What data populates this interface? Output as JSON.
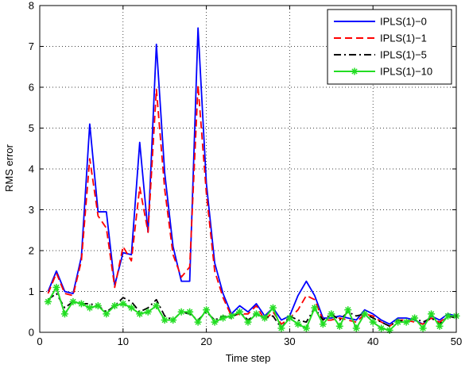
{
  "chart_data": {
    "type": "line",
    "title": "",
    "xlabel": "Time step",
    "ylabel": "RMS error",
    "xlim": [
      0,
      50
    ],
    "ylim": [
      0,
      8
    ],
    "xticks": [
      "0",
      "10",
      "20",
      "30",
      "40",
      "50"
    ],
    "yticks": [
      "0",
      "1",
      "2",
      "3",
      "4",
      "5",
      "6",
      "7",
      "8"
    ],
    "grid": true,
    "legend_position": "top-right",
    "x": [
      1,
      2,
      3,
      4,
      5,
      6,
      7,
      8,
      9,
      10,
      11,
      12,
      13,
      14,
      15,
      16,
      17,
      18,
      19,
      20,
      21,
      22,
      23,
      24,
      25,
      26,
      27,
      28,
      29,
      30,
      31,
      32,
      33,
      34,
      35,
      36,
      37,
      38,
      39,
      40,
      41,
      42,
      43,
      44,
      45,
      46,
      47,
      48,
      49,
      50
    ],
    "series": [
      {
        "name": "IPLS(1)−0",
        "color": "#0000ff",
        "style": "solid",
        "values": [
          1.0,
          1.5,
          1.0,
          0.95,
          1.85,
          5.1,
          2.95,
          2.95,
          1.15,
          1.95,
          1.9,
          4.65,
          2.45,
          7.05,
          3.9,
          2.1,
          1.25,
          1.25,
          7.45,
          3.65,
          1.7,
          0.95,
          0.45,
          0.65,
          0.5,
          0.7,
          0.4,
          0.6,
          0.3,
          0.4,
          0.9,
          1.25,
          0.9,
          0.35,
          0.35,
          0.4,
          0.35,
          0.3,
          0.55,
          0.45,
          0.3,
          0.2,
          0.35,
          0.35,
          0.3,
          0.2,
          0.4,
          0.3,
          0.45,
          0.4
        ]
      },
      {
        "name": "IPLS(1)−1",
        "color": "#ff0000",
        "style": "dashed",
        "values": [
          0.95,
          1.45,
          0.95,
          0.9,
          1.75,
          4.25,
          2.85,
          2.55,
          1.1,
          2.1,
          1.75,
          3.55,
          2.45,
          5.95,
          3.5,
          1.9,
          1.35,
          1.6,
          6.05,
          3.4,
          1.5,
          0.85,
          0.4,
          0.45,
          0.45,
          0.65,
          0.3,
          0.5,
          0.2,
          0.35,
          0.55,
          0.9,
          0.8,
          0.3,
          0.3,
          0.35,
          0.3,
          0.25,
          0.45,
          0.4,
          0.25,
          0.15,
          0.3,
          0.3,
          0.25,
          0.2,
          0.35,
          0.25,
          0.4,
          0.35
        ]
      },
      {
        "name": "IPLS(1)−5",
        "color": "#000000",
        "style": "dashdot",
        "values": [
          0.8,
          0.95,
          0.6,
          0.75,
          0.7,
          0.7,
          0.65,
          0.5,
          0.65,
          0.85,
          0.75,
          0.5,
          0.6,
          0.8,
          0.4,
          0.3,
          0.5,
          0.45,
          0.3,
          0.5,
          0.3,
          0.4,
          0.35,
          0.5,
          0.3,
          0.45,
          0.35,
          0.4,
          0.1,
          0.4,
          0.3,
          0.25,
          0.6,
          0.3,
          0.45,
          0.3,
          0.5,
          0.4,
          0.45,
          0.35,
          0.25,
          0.15,
          0.3,
          0.25,
          0.35,
          0.25,
          0.35,
          0.2,
          0.4,
          0.35
        ]
      },
      {
        "name": "IPLS(1)−10",
        "color": "#22dd22",
        "style": "solid-star",
        "values": [
          0.75,
          1.1,
          0.45,
          0.75,
          0.7,
          0.6,
          0.65,
          0.45,
          0.65,
          0.7,
          0.6,
          0.45,
          0.5,
          0.65,
          0.3,
          0.3,
          0.5,
          0.5,
          0.25,
          0.55,
          0.25,
          0.35,
          0.4,
          0.5,
          0.25,
          0.45,
          0.35,
          0.6,
          0.1,
          0.35,
          0.2,
          0.1,
          0.6,
          0.2,
          0.45,
          0.15,
          0.55,
          0.1,
          0.45,
          0.25,
          0.1,
          0.05,
          0.25,
          0.25,
          0.35,
          0.1,
          0.45,
          0.15,
          0.4,
          0.4
        ]
      }
    ]
  }
}
